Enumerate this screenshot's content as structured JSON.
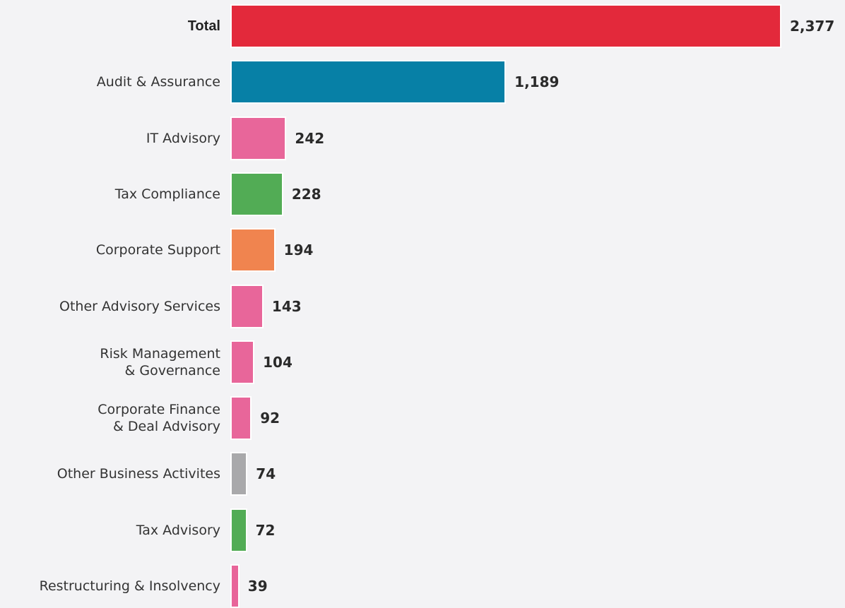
{
  "chart_data": {
    "type": "bar",
    "orientation": "horizontal",
    "categories": [
      "Total",
      "Audit & Assurance",
      "IT Advisory",
      "Tax Compliance",
      "Corporate Support",
      "Other Advisory Services",
      "Risk Management\n& Governance",
      "Corporate Finance\n& Deal Advisory",
      "Other Business Activites",
      "Tax Advisory",
      "Restructuring & Insolvency"
    ],
    "values": [
      2377,
      1189,
      242,
      228,
      194,
      143,
      104,
      92,
      74,
      72,
      39
    ],
    "value_labels": [
      "2,377",
      "1,189",
      "242",
      "228",
      "194",
      "143",
      "104",
      "92",
      "74",
      "72",
      "39"
    ],
    "colors": [
      "#e3293b",
      "#0780a6",
      "#e8669a",
      "#52ac55",
      "#f0844f",
      "#e8669a",
      "#e8669a",
      "#e8669a",
      "#a9a9ab",
      "#52ac55",
      "#e8669a"
    ]
  }
}
